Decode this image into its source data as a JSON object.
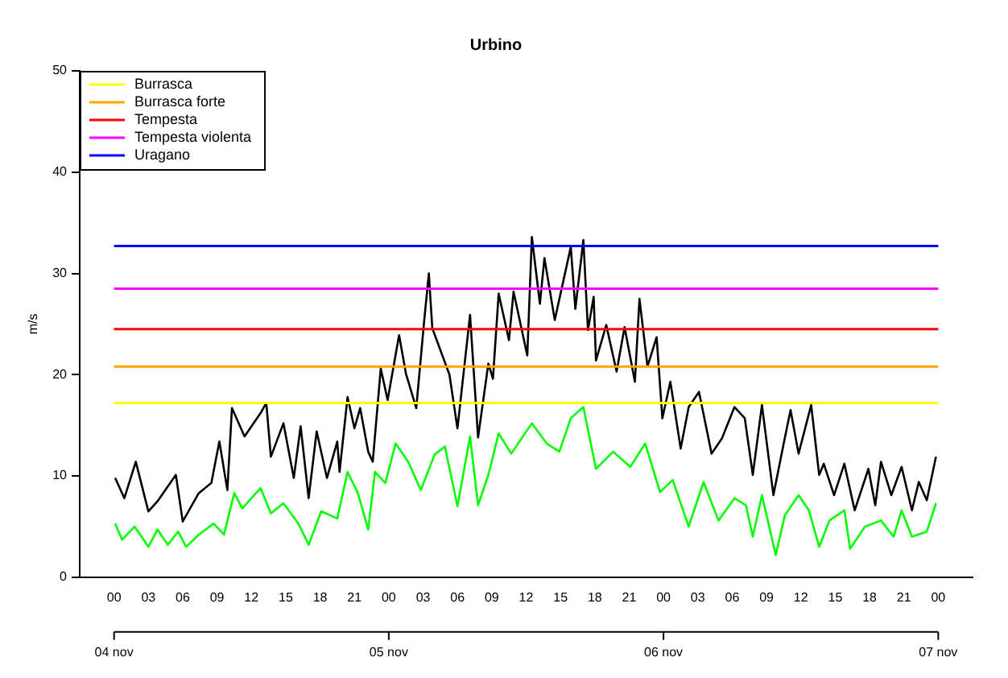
{
  "chart_data": {
    "type": "line",
    "title": "Urbino",
    "ylabel": "m/s",
    "xlim": [
      -3,
      75
    ],
    "ylim": [
      0,
      50
    ],
    "yticks": [
      0,
      10,
      20,
      30,
      40,
      50
    ],
    "xticks": [
      {
        "value": 0,
        "label": "00"
      },
      {
        "value": 3,
        "label": "03"
      },
      {
        "value": 6,
        "label": "06"
      },
      {
        "value": 9,
        "label": "09"
      },
      {
        "value": 12,
        "label": "12"
      },
      {
        "value": 15,
        "label": "15"
      },
      {
        "value": 18,
        "label": "18"
      },
      {
        "value": 21,
        "label": "21"
      },
      {
        "value": 24,
        "label": "00"
      },
      {
        "value": 27,
        "label": "03"
      },
      {
        "value": 30,
        "label": "06"
      },
      {
        "value": 33,
        "label": "09"
      },
      {
        "value": 36,
        "label": "12"
      },
      {
        "value": 39,
        "label": "15"
      },
      {
        "value": 42,
        "label": "18"
      },
      {
        "value": 45,
        "label": "21"
      },
      {
        "value": 48,
        "label": "00"
      },
      {
        "value": 51,
        "label": "03"
      },
      {
        "value": 54,
        "label": "06"
      },
      {
        "value": 57,
        "label": "09"
      },
      {
        "value": 60,
        "label": "12"
      },
      {
        "value": 63,
        "label": "15"
      },
      {
        "value": 66,
        "label": "18"
      },
      {
        "value": 69,
        "label": "21"
      },
      {
        "value": 72,
        "label": "00"
      }
    ],
    "annotations": [
      "04 nov",
      "05 nov",
      "06 nov",
      "07 nov"
    ],
    "series": [
      {
        "color": "#000000",
        "x": [
          0.1,
          0.9,
          1.9,
          3,
          3.8,
          5.4,
          6,
          7.4,
          8.5,
          9.2,
          9.9,
          10.3,
          11.4,
          12.8,
          13.3,
          13.7,
          14.8,
          15.7,
          16.3,
          17,
          17.7,
          18.6,
          19.5,
          19.7,
          20.4,
          21,
          21.5,
          22.2,
          22.6,
          23.3,
          23.9,
          24.9,
          25.5,
          26.4,
          27.1,
          27.5,
          27.8,
          29.3,
          30,
          31.1,
          31.8,
          32.7,
          33.1,
          33.6,
          34.5,
          34.9,
          36.1,
          36.5,
          37.2,
          37.6,
          38.5,
          39.2,
          39.9,
          40.3,
          41,
          41.4,
          41.9,
          42.1,
          43,
          43.9,
          44.6,
          45.5,
          45.9,
          46.6,
          47.4,
          47.9,
          48.6,
          49.5,
          50.2,
          51.1,
          52.2,
          53.1,
          54.2,
          55.1,
          55.8,
          56.6,
          57.6,
          58.5,
          59.1,
          59.8,
          60.9,
          61.6,
          62,
          62.9,
          63.8,
          64.7,
          65.9,
          66.5,
          67,
          67.9,
          68.8,
          69.7,
          70.3,
          71,
          71.8
        ],
        "values": [
          9.8,
          7.8,
          11.4,
          6.5,
          7.5,
          10.1,
          5.5,
          8.3,
          9.3,
          13.4,
          8.6,
          16.7,
          13.9,
          16.2,
          17.2,
          11.9,
          15.2,
          9.8,
          14.9,
          7.8,
          14.4,
          9.8,
          13.4,
          10.4,
          17.8,
          14.7,
          16.7,
          12.4,
          11.4,
          20.6,
          17.5,
          23.9,
          20.1,
          16.7,
          25.4,
          30,
          24.6,
          20,
          14.7,
          25.9,
          13.8,
          21.1,
          19.6,
          28,
          23.4,
          28.2,
          21.9,
          33.6,
          27,
          31.5,
          25.4,
          29,
          32.6,
          26.5,
          33.3,
          24.4,
          27.7,
          21.4,
          24.9,
          20.3,
          24.7,
          19.3,
          27.5,
          20.8,
          23.7,
          15.7,
          19.3,
          12.7,
          16.8,
          18.3,
          12.2,
          13.7,
          16.8,
          15.7,
          10.1,
          17,
          8.1,
          13.2,
          16.5,
          12.2,
          17,
          10.1,
          11.2,
          8.1,
          11.2,
          6.6,
          10.7,
          7.1,
          11.4,
          8.1,
          10.9,
          6.6,
          9.4,
          7.6,
          11.9
        ]
      },
      {
        "color": "#00ff00",
        "x": [
          0.1,
          0.7,
          1.8,
          3,
          3.8,
          4.7,
          5.6,
          6.3,
          7.4,
          8.7,
          9.6,
          10.5,
          11.2,
          12.8,
          13.7,
          14.8,
          16.1,
          17,
          18.1,
          19.5,
          20.4,
          21.3,
          22.2,
          22.8,
          23.7,
          24.6,
          25.7,
          26.8,
          28,
          28.9,
          30,
          31.1,
          31.8,
          32.7,
          33.6,
          34.7,
          36.5,
          37.8,
          38.9,
          39.9,
          41,
          42.1,
          43.6,
          45.1,
          46.4,
          47.7,
          48.8,
          50.2,
          51.5,
          52.8,
          54.2,
          55.2,
          55.8,
          56.6,
          57.8,
          58.6,
          59.8,
          60.7,
          61.6,
          62.5,
          63.8,
          64.3,
          65.6,
          67,
          68.1,
          68.8,
          69.7,
          71,
          71.8
        ],
        "values": [
          5.3,
          3.7,
          5,
          3,
          4.7,
          3.2,
          4.5,
          3,
          4.2,
          5.3,
          4.2,
          8.3,
          6.8,
          8.8,
          6.3,
          7.3,
          5.3,
          3.2,
          6.5,
          5.8,
          10.4,
          8.3,
          4.7,
          10.4,
          9.3,
          13.2,
          11.4,
          8.6,
          12.1,
          12.9,
          7,
          13.9,
          7.1,
          10.1,
          14.2,
          12.2,
          15.2,
          13.2,
          12.4,
          15.7,
          16.8,
          10.7,
          12.4,
          10.9,
          13.2,
          8.4,
          9.6,
          5,
          9.4,
          5.6,
          7.8,
          7.1,
          4,
          8.1,
          2.2,
          6.1,
          8.1,
          6.6,
          3,
          5.6,
          6.6,
          2.8,
          5,
          5.6,
          4,
          6.6,
          4,
          4.5,
          7.3
        ]
      }
    ],
    "ref_lines": [
      {
        "axis": "y",
        "value": 17.2,
        "label": "Burrasca",
        "color": "#ffff00"
      },
      {
        "axis": "y",
        "value": 20.8,
        "label": "Burrasca forte",
        "color": "#ffa500"
      },
      {
        "axis": "y",
        "value": 24.5,
        "label": "Tempesta",
        "color": "#ff0000"
      },
      {
        "axis": "y",
        "value": 28.5,
        "label": "Tempesta violenta",
        "color": "#ff00ff"
      },
      {
        "axis": "y",
        "value": 32.7,
        "label": "Uragano",
        "color": "#0000ff"
      }
    ],
    "legend": "top left",
    "grid": false
  }
}
